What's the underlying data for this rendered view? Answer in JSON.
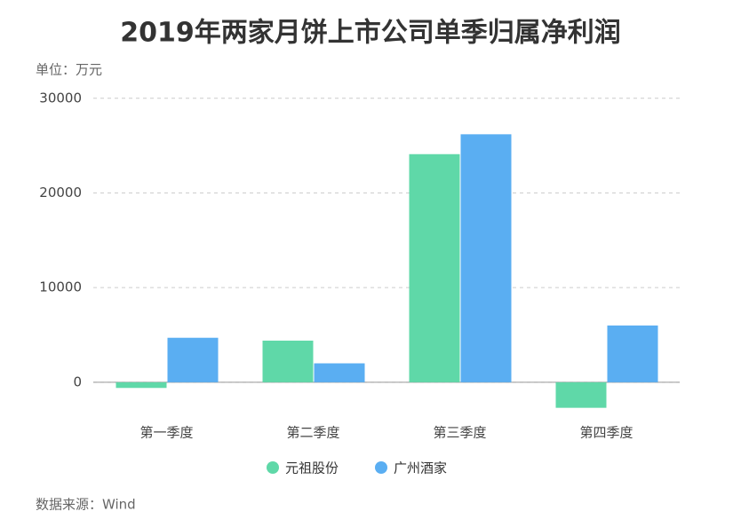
{
  "chart_data": {
    "type": "bar",
    "title": "2019年两家月饼上市公司单季归属净利润",
    "unit_label": "单位：万元",
    "source": "数据来源：Wind",
    "categories": [
      "第一季度",
      "第二季度",
      "第三季度",
      "第四季度"
    ],
    "series": [
      {
        "name": "元祖股份",
        "color": "#5fd8a8",
        "values": [
          -600,
          4400,
          24100,
          -2700
        ]
      },
      {
        "name": "广州酒家",
        "color": "#5aaef2",
        "values": [
          4700,
          2000,
          26200,
          6000
        ]
      }
    ],
    "ylim": [
      -3200,
      31200
    ],
    "yticks": [
      0,
      10000,
      20000,
      30000
    ],
    "grid": true
  }
}
